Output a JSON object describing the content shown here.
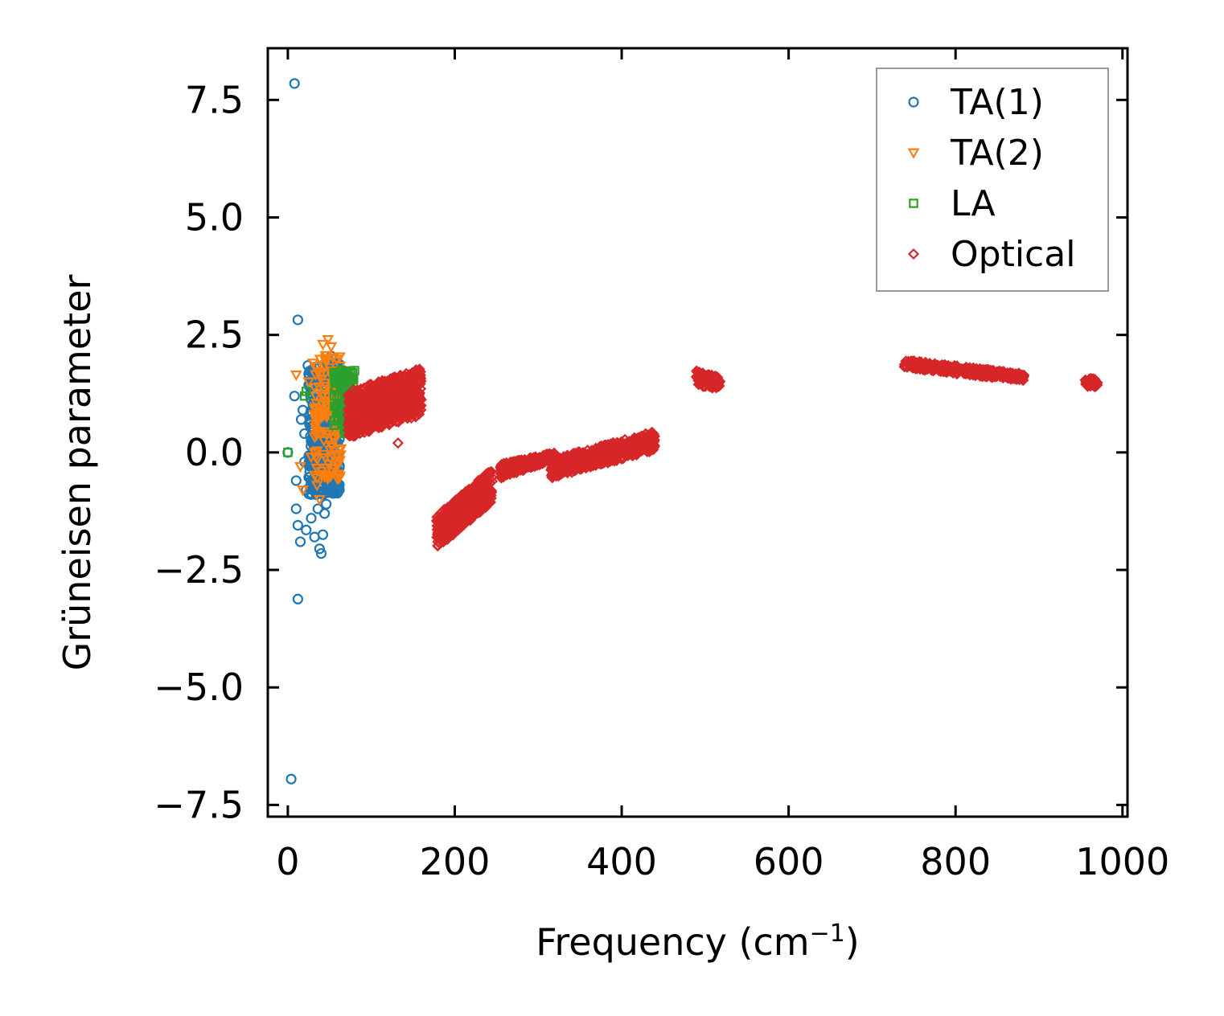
{
  "chart_data": {
    "type": "scatter",
    "xlabel": "Frequency (cm",
    "xlabel_superscript": "−1",
    "xlabel_suffix": ")",
    "ylabel": "Grüneisen parameter",
    "xlim": [
      -24,
      1006
    ],
    "ylim": [
      -7.75,
      8.6
    ],
    "xticks": [
      0,
      200,
      400,
      600,
      800,
      1000
    ],
    "xtick_labels": [
      "0",
      "200",
      "400",
      "600",
      "800",
      "1000"
    ],
    "yticks": [
      -7.5,
      -5.0,
      -2.5,
      0.0,
      2.5,
      5.0,
      7.5
    ],
    "ytick_labels": [
      "−7.5",
      "−5.0",
      "−2.5",
      "0.0",
      "2.5",
      "5.0",
      "7.5"
    ],
    "grid": false,
    "legend_position": "top-right",
    "series": [
      {
        "name": "TA(1)",
        "marker": "circle",
        "color": "#1f77b4",
        "points": [
          [
            8,
            7.85
          ],
          [
            12,
            2.82
          ],
          [
            4,
            -6.95
          ],
          [
            12,
            -3.12
          ],
          [
            8,
            1.2
          ],
          [
            10,
            -0.6
          ],
          [
            15,
            -1.9
          ],
          [
            12,
            -1.55
          ],
          [
            10,
            -1.2
          ],
          [
            0,
            0.0
          ],
          [
            18,
            0.9
          ],
          [
            20,
            0.4
          ],
          [
            24,
            1.85
          ],
          [
            22,
            -1.65
          ],
          [
            28,
            -1.4
          ],
          [
            32,
            -1.8
          ],
          [
            34,
            -0.9
          ],
          [
            38,
            -2.05
          ],
          [
            40,
            -2.15
          ],
          [
            42,
            -1.75
          ],
          [
            44,
            -1.3
          ],
          [
            46,
            -1.1
          ],
          [
            50,
            1.95
          ],
          [
            52,
            2.05
          ],
          [
            48,
            1.6
          ],
          [
            30,
            0.2
          ],
          [
            26,
            0.6
          ],
          [
            16,
            0.7
          ],
          [
            20,
            -0.2
          ],
          [
            22,
            -0.8
          ],
          [
            36,
            -1.2
          ],
          [
            44,
            -0.3
          ],
          [
            52,
            -0.1
          ]
        ],
        "band": {
          "x_range": [
            25,
            62
          ],
          "y_range": [
            -0.9,
            1.9
          ],
          "count": 420
        }
      },
      {
        "name": "TA(2)",
        "marker": "triangle-down",
        "color": "#ff7f0e",
        "points": [
          [
            10,
            1.65
          ],
          [
            15,
            -0.3
          ],
          [
            18,
            -0.8
          ],
          [
            25,
            1.5
          ],
          [
            30,
            1.9
          ],
          [
            35,
            -0.7
          ],
          [
            38,
            -1.0
          ],
          [
            42,
            2.3
          ],
          [
            48,
            2.4
          ],
          [
            52,
            2.25
          ],
          [
            50,
            1.8
          ],
          [
            56,
            1.4
          ],
          [
            28,
            -0.1
          ],
          [
            40,
            -0.4
          ]
        ],
        "band": {
          "x_range": [
            32,
            64
          ],
          "y_range": [
            -0.6,
            2.1
          ],
          "count": 150
        }
      },
      {
        "name": "LA",
        "marker": "square",
        "color": "#2ca02c",
        "points": [
          [
            0,
            0.0
          ],
          [
            22,
            1.3
          ],
          [
            20,
            1.2
          ],
          [
            64,
            1.75
          ],
          [
            70,
            1.55
          ],
          [
            72,
            0.9
          ],
          [
            66,
            0.6
          ]
        ],
        "band": {
          "x_range": [
            55,
            80
          ],
          "y_range": [
            0.4,
            1.75
          ],
          "count": 120
        }
      },
      {
        "name": "Optical",
        "marker": "diamond",
        "color": "#d62728",
        "points": [
          [
            132,
            0.2
          ]
        ],
        "clusters": [
          {
            "x_range": [
              72,
              160
            ],
            "y_start": [
              0.3,
              1.3
            ],
            "y_end": [
              0.8,
              1.8
            ],
            "count": 700
          },
          {
            "x_range": [
              178,
              245
            ],
            "y_start": [
              -2.05,
              -1.35
            ],
            "y_end": [
              -1.05,
              -0.35
            ],
            "count": 420
          },
          {
            "x_range": [
              255,
              320
            ],
            "y_start": [
              -0.55,
              -0.25
            ],
            "y_end": [
              -0.15,
              0.0
            ],
            "count": 260
          },
          {
            "x_range": [
              315,
              440
            ],
            "y_start": [
              -0.55,
              -0.15
            ],
            "y_end": [
              0.05,
              0.45
            ],
            "count": 520
          },
          {
            "x_range": [
              488,
              518
            ],
            "y_start": [
              1.4,
              1.75
            ],
            "y_end": [
              1.35,
              1.6
            ],
            "count": 90
          },
          {
            "x_range": [
              738,
              882
            ],
            "y_start": [
              1.8,
              1.97
            ],
            "y_end": [
              1.52,
              1.68
            ],
            "count": 360
          },
          {
            "x_range": [
              955,
              970
            ],
            "y_start": [
              1.4,
              1.6
            ],
            "y_end": [
              1.4,
              1.55
            ],
            "count": 40
          }
        ]
      }
    ]
  }
}
